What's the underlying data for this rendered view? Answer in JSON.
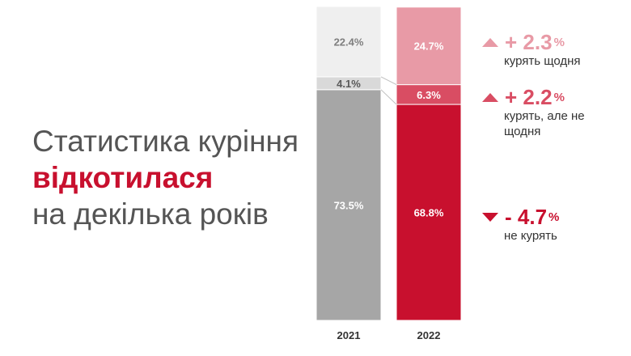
{
  "headline": {
    "line1": "Статистика куріння",
    "line2": "відкотилася",
    "line3": "на декілька років"
  },
  "deltas": [
    {
      "direction": "up",
      "value": "+ 2.3",
      "unit": "%",
      "label": "курять щодня",
      "color": "#e89aa6"
    },
    {
      "direction": "up",
      "value": "+ 2.2",
      "unit": "%",
      "label": "курять, але не щодня",
      "color": "#d94d63"
    },
    {
      "direction": "down",
      "value": "- 4.7",
      "unit": "%",
      "label": "не курять",
      "color": "#c8102e"
    }
  ],
  "chart_data": {
    "type": "bar",
    "stacked": true,
    "categories": [
      "2021",
      "2022"
    ],
    "series": [
      {
        "name": "не курять",
        "values": [
          73.5,
          68.8
        ],
        "labels": [
          "73.5%",
          "68.8%"
        ],
        "colors": [
          "#a6a6a6",
          "#c8102e"
        ],
        "label_colors": [
          "#ffffff",
          "#ffffff"
        ]
      },
      {
        "name": "курять, але не щодня",
        "values": [
          4.1,
          6.3
        ],
        "labels": [
          "4.1%",
          "6.3%"
        ],
        "colors": [
          "#d9d9d9",
          "#d94d63"
        ],
        "label_colors": [
          "#595959",
          "#ffffff"
        ]
      },
      {
        "name": "курять щодня",
        "values": [
          22.4,
          24.7
        ],
        "labels": [
          "22.4%",
          "24.7%"
        ],
        "colors": [
          "#efefef",
          "#e89aa6"
        ],
        "label_colors": [
          "#7f7f7f",
          "#ffffff"
        ]
      }
    ],
    "ylim": [
      0,
      100
    ]
  }
}
